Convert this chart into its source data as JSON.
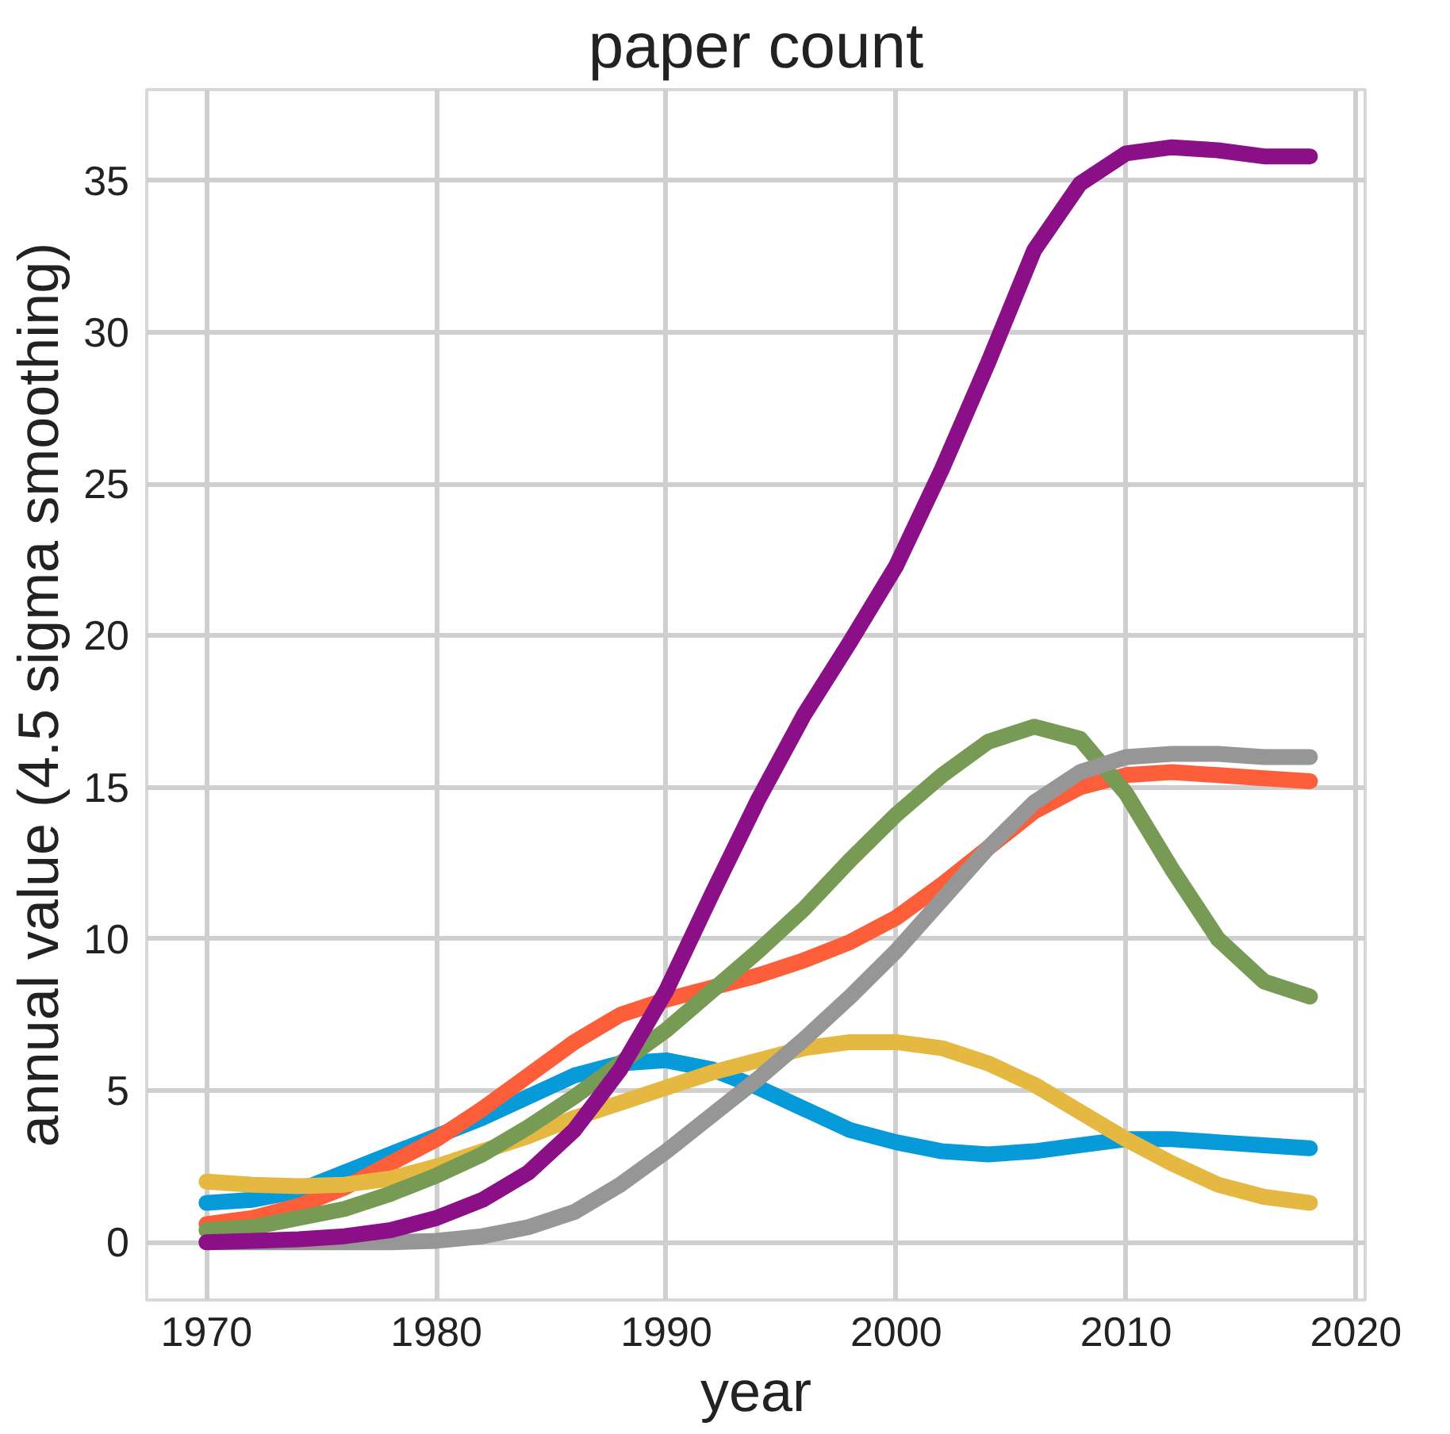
{
  "chart_data": {
    "type": "line",
    "title": "paper count",
    "xlabel": "year",
    "ylabel": "annual value (4.5 sigma smoothing)",
    "x": [
      1970,
      1972,
      1974,
      1976,
      1978,
      1980,
      1982,
      1984,
      1986,
      1988,
      1990,
      1992,
      1994,
      1996,
      1998,
      2000,
      2002,
      2004,
      2006,
      2008,
      2010,
      2012,
      2014,
      2016,
      2018
    ],
    "series": [
      {
        "color": "#079ad9",
        "values": [
          1.3,
          1.4,
          1.7,
          2.3,
          2.9,
          3.5,
          4.1,
          4.8,
          5.5,
          5.9,
          6.0,
          5.7,
          5.1,
          4.4,
          3.7,
          3.3,
          3.0,
          2.9,
          3.0,
          3.2,
          3.4,
          3.4,
          3.3,
          3.2,
          3.1
        ]
      },
      {
        "color": "#fc5e3a",
        "values": [
          0.6,
          0.8,
          1.2,
          1.8,
          2.6,
          3.4,
          4.4,
          5.5,
          6.6,
          7.5,
          8.0,
          8.4,
          8.8,
          9.3,
          9.9,
          10.7,
          11.8,
          13.0,
          14.2,
          15.0,
          15.4,
          15.5,
          15.4,
          15.3,
          15.2
        ]
      },
      {
        "color": "#e5b842",
        "values": [
          2.0,
          1.9,
          1.85,
          1.9,
          2.1,
          2.5,
          3.0,
          3.5,
          4.1,
          4.6,
          5.1,
          5.6,
          6.0,
          6.4,
          6.6,
          6.6,
          6.4,
          5.9,
          5.2,
          4.3,
          3.4,
          2.6,
          1.9,
          1.5,
          1.3
        ]
      },
      {
        "color": "#779a54",
        "values": [
          0.4,
          0.5,
          0.8,
          1.1,
          1.6,
          2.2,
          2.9,
          3.8,
          4.8,
          5.9,
          7.0,
          8.3,
          9.6,
          11.0,
          12.6,
          14.1,
          15.4,
          16.5,
          17.0,
          16.6,
          14.8,
          12.3,
          10.0,
          8.6,
          8.1
        ]
      },
      {
        "color": "#969696",
        "values": [
          0.0,
          0.0,
          0.0,
          0.0,
          0.0,
          0.05,
          0.2,
          0.5,
          1.0,
          1.9,
          3.0,
          4.2,
          5.4,
          6.7,
          8.1,
          9.6,
          11.3,
          13.0,
          14.5,
          15.5,
          16.0,
          16.1,
          16.1,
          16.0,
          16.0
        ]
      },
      {
        "color": "#8b0f87",
        "values": [
          0.0,
          0.05,
          0.1,
          0.2,
          0.4,
          0.8,
          1.4,
          2.3,
          3.7,
          5.7,
          8.3,
          11.5,
          14.6,
          17.4,
          19.8,
          22.3,
          25.5,
          29.0,
          32.7,
          34.9,
          35.9,
          36.1,
          36.0,
          35.8,
          35.8
        ]
      }
    ],
    "xlim": [
      1967.4,
      2020.4
    ],
    "ylim": [
      -1.9,
      38.0
    ],
    "xticks": [
      1970,
      1980,
      1990,
      2000,
      2010,
      2020
    ],
    "yticks": [
      0,
      5,
      10,
      15,
      20,
      25,
      30,
      35
    ],
    "grid": true,
    "line_style": "solid"
  }
}
